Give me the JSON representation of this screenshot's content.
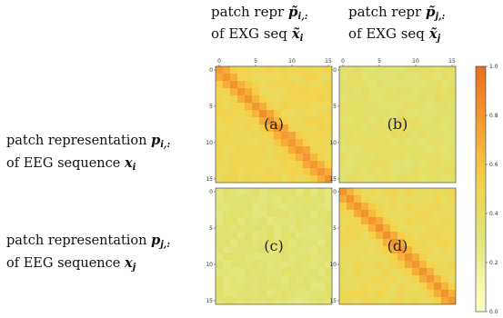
{
  "column_labels": [
    {
      "line1": "patch repr",
      "sym": "p̃",
      "sub": "i,:",
      "line2": "of EXG seq",
      "sym2": "x̃",
      "sub2": "i"
    },
    {
      "line1": "patch repr",
      "sym": "p̃",
      "sub": "j,:",
      "line2": "of EXG seq",
      "sym2": "x̃",
      "sub2": "j"
    }
  ],
  "row_labels": [
    {
      "line1": "patch representation",
      "sym": "p",
      "sub": "i,:",
      "line2": "of EEG sequence",
      "sym2": "x",
      "sub2": "i"
    },
    {
      "line1": "patch representation",
      "sym": "p",
      "sub": "j,:",
      "line2": "of EEG sequence",
      "sym2": "x",
      "sub2": "j"
    }
  ],
  "chart_data": {
    "type": "heatmap",
    "grid_size": 16,
    "x_ticks": [
      "0",
      "5",
      "10",
      "15"
    ],
    "y_ticks": [
      "0",
      "5",
      "10",
      "15"
    ],
    "colorbar": {
      "min": 0.0,
      "max": 1.0,
      "ticks": [
        "0.0",
        "0.2",
        "0.4",
        "0.6",
        "0.8",
        "1.0"
      ],
      "colormap": "yellow-to-orange"
    },
    "panels": [
      {
        "label": "(a)",
        "pattern": "strong diagonal",
        "diagonal_value": 0.8,
        "background_value": 0.48
      },
      {
        "label": "(b)",
        "pattern": "no diagonal",
        "diagonal_value": 0.38,
        "background_value": 0.38
      },
      {
        "label": "(c)",
        "pattern": "no diagonal",
        "diagonal_value": 0.33,
        "background_value": 0.33
      },
      {
        "label": "(d)",
        "pattern": "strong diagonal",
        "diagonal_value": 0.8,
        "background_value": 0.46
      }
    ]
  }
}
